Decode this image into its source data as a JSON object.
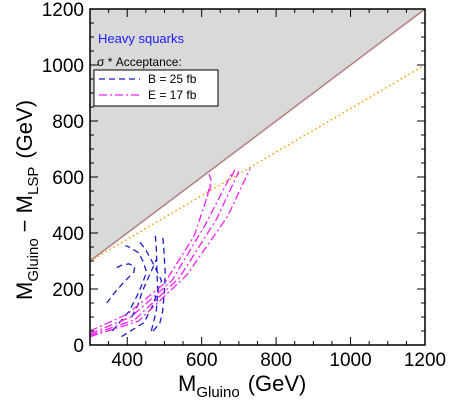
{
  "chart_data": {
    "type": "line",
    "xlabel_main": "M",
    "xlabel_sub": "Gluino",
    "xlabel_unit": "(GeV)",
    "ylabel_main1": "M",
    "ylabel_sub1": "Gluino",
    "ylabel_dash": "− M",
    "ylabel_sub2": "LSP",
    "ylabel_unit": "(GeV)",
    "xlim": [
      300,
      1200
    ],
    "ylim": [
      0,
      1200
    ],
    "xticks": [
      400,
      600,
      800,
      1000,
      1200
    ],
    "yticks": [
      0,
      200,
      400,
      600,
      800,
      1000,
      1200
    ],
    "region_label": "Heavy squarks",
    "legend_title": "σ * Acceptance:",
    "legend_entries": [
      "B = 25 fb",
      "E = 17 fb"
    ],
    "colors": {
      "shaded_region": "#d9d9d9",
      "boundary": "#b08080",
      "dotted_line": "#ff9900",
      "series_B": "#1a1acc",
      "series_E": "#ee22ee",
      "region_label": "#1a1aff"
    },
    "boundary_line": {
      "x": [
        300,
        1200
      ],
      "y": [
        300,
        1200
      ]
    },
    "dotted_line": {
      "x": [
        300,
        1200
      ],
      "y": [
        300,
        1000
      ]
    },
    "series": [
      {
        "name": "B = 25 fb",
        "style": "dashed",
        "curves": [
          {
            "x": [
              385,
              445,
              468,
              492,
              470,
              450,
              435,
              428,
              430
            ],
            "y": [
              30,
              80,
              140,
              230,
              290,
              340,
              365,
              370,
              365
            ]
          },
          {
            "x": [
              360,
              405,
              432,
              452,
              442,
              430,
              405,
              395
            ],
            "y": [
              50,
              120,
              190,
              260,
              300,
              330,
              350,
              355
            ]
          },
          {
            "x": [
              345,
              368,
              395,
              418,
              420,
              405,
              385,
              370
            ],
            "y": [
              150,
              190,
              230,
              260,
              280,
              290,
              285,
              275
            ]
          },
          {
            "x": [
              412,
              428,
              440,
              460,
              480
            ],
            "y": [
              100,
              140,
              190,
              250,
              310
            ]
          },
          {
            "x": [
              470,
              488,
              495,
              500,
              502,
              498,
              495
            ],
            "y": [
              50,
              80,
              120,
              190,
              260,
              350,
              390
            ]
          },
          {
            "x": [
              465,
              470,
              478,
              482,
              480,
              478,
              475
            ],
            "y": [
              50,
              80,
              120,
              190,
              260,
              350,
              400
            ]
          }
        ]
      },
      {
        "name": "E = 17 fb",
        "style": "dashdot",
        "curves": [
          {
            "x": [
              300,
              400,
              500,
              580,
              625
            ],
            "y": [
              50,
              110,
              220,
              390,
              570
            ]
          },
          {
            "x": [
              300,
              410,
              520,
              610,
              680
            ],
            "y": [
              40,
              100,
              230,
              430,
              610
            ]
          },
          {
            "x": [
              300,
              420,
              540,
              640,
              700
            ],
            "y": [
              35,
              90,
              240,
              450,
              620
            ]
          },
          {
            "x": [
              300,
              430,
              560,
              670,
              730
            ],
            "y": [
              30,
              85,
              250,
              460,
              630
            ]
          },
          {
            "x": [
              615,
              625,
              620
            ],
            "y": [
              530,
              590,
              610
            ]
          },
          {
            "x": [
              680,
              690
            ],
            "y": [
              600,
              630
            ]
          }
        ]
      }
    ]
  }
}
